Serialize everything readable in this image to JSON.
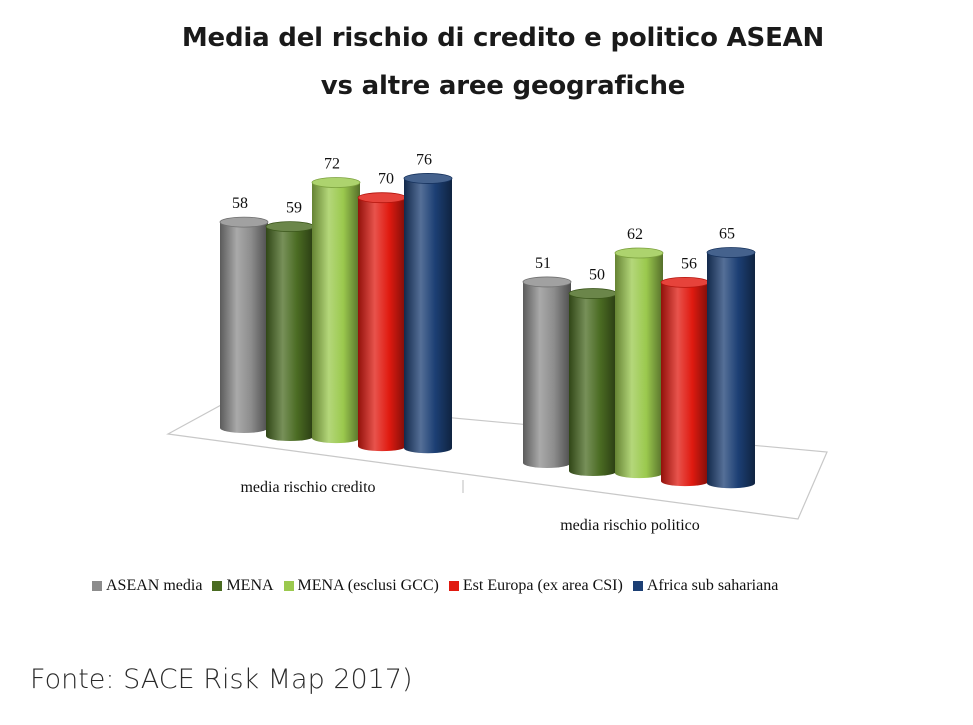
{
  "title": {
    "line1": "Media del rischio di credito e politico ASEAN",
    "line2": "vs altre aree geografiche"
  },
  "source": "Fonte: SACE Risk Map 2017)",
  "chart_data": {
    "type": "bar",
    "style": "3d-cylinder",
    "categories": [
      "media rischio credito",
      "media rischio politico"
    ],
    "series": [
      {
        "name": "ASEAN media",
        "color": "#8c8c8c",
        "values": [
          58,
          51
        ]
      },
      {
        "name": "MENA",
        "color": "#4a6b22",
        "values": [
          59,
          50
        ]
      },
      {
        "name": "MENA (esclusi GCC)",
        "color": "#9bc94e",
        "values": [
          72,
          62
        ]
      },
      {
        "name": "Est Europa (ex area CSI)",
        "color": "#e01a10",
        "values": [
          70,
          56
        ]
      },
      {
        "name": "Africa sub sahariana",
        "color": "#1c3f74",
        "values": [
          76,
          65
        ]
      }
    ],
    "data_labels": true,
    "legend_position": "bottom",
    "grid": false
  }
}
